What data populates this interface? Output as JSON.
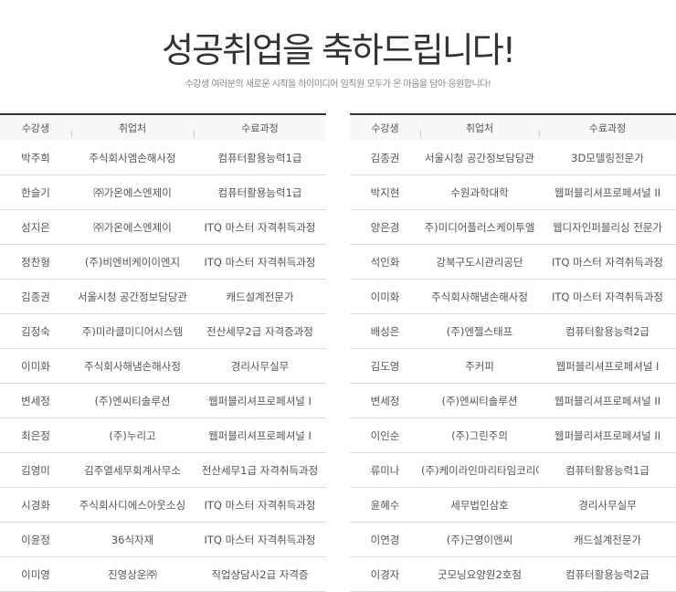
{
  "header": {
    "title": "성공취업을 축하드립니다!",
    "subtitle": "수강생 여러분의 새로운 시작을 하이미디어 임직원 모두가 온 마음을 담아 응원합니다!"
  },
  "columns": [
    "수강생",
    "취업처",
    "수료과정"
  ],
  "left_table": [
    [
      "박주희",
      "주식회사엠손해사정",
      "컴퓨터활용능력1급"
    ],
    [
      "한슬기",
      "㈜가온에스엔제이",
      "컴퓨터활용능력1급"
    ],
    [
      "성지은",
      "㈜가온에스엔제이",
      "ITQ 마스터 자격취득과정"
    ],
    [
      "정찬형",
      "(주)비엔비케이이엔지",
      "ITQ 마스터 자격취득과정"
    ],
    [
      "김종권",
      "서울시청 공간정보담당관",
      "캐드설계전문가"
    ],
    [
      "김정숙",
      "주)미라클미디어시스템",
      "전산세무2급 자격증과정"
    ],
    [
      "이미화",
      "주식회사해냄손해사정",
      "경리사무실무"
    ],
    [
      "변세정",
      "(주)엔씨티솔루션",
      "웹퍼블리셔프로페셔널 I"
    ],
    [
      "최은정",
      "(주)누리고",
      "웹퍼블리셔프로페셔널 I"
    ],
    [
      "김영미",
      "김주열세무회계사무소",
      "전산세무1급 자격취득과정"
    ],
    [
      "시경화",
      "주식회사디에스아웃소싱",
      "ITQ 마스터 자격취득과정"
    ],
    [
      "이윤정",
      "36식자재",
      "ITQ 마스터 자격취득과정"
    ],
    [
      "이미영",
      "진영상운㈜",
      "직업상담사2급 자격증"
    ]
  ],
  "right_table": [
    [
      "김종권",
      "서울시청 공간정보담당관",
      "3D모델링전문가"
    ],
    [
      "박지현",
      "수원과학대학",
      "웹퍼블리셔프로페셔널 II"
    ],
    [
      "양은경",
      "주)미디어플러스케이투엘",
      "웹디자인퍼블리싱 전문가"
    ],
    [
      "석인화",
      "강북구도시관리공단",
      "ITQ 마스터 자격취득과정"
    ],
    [
      "이미화",
      "주식회사해냄손해사정",
      "ITQ 마스터 자격취득과정"
    ],
    [
      "배성은",
      "(주)엔젤스태프",
      "컴퓨터활용능력2급"
    ],
    [
      "김도영",
      "주커피",
      "웹퍼블리셔프로페셔널 I"
    ],
    [
      "변세정",
      "(주)엔씨티솔루션",
      "웹퍼블리셔프로페셔널 II"
    ],
    [
      "이인순",
      "(주)그린주의",
      "웹퍼블리셔프로페셔널 II"
    ],
    [
      "류미나",
      "(주)케이라인마리타임코리아",
      "컴퓨터활용능력1급"
    ],
    [
      "윤혜수",
      "세무법인삼호",
      "경리사무실무"
    ],
    [
      "이연경",
      "(주)근영이엔씨",
      "캐드설계전문가"
    ],
    [
      "이경자",
      "굿모닝요양원2호점",
      "컴퓨터활용능력2급"
    ]
  ]
}
